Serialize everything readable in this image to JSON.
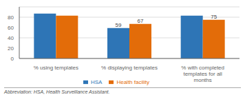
{
  "chart_data": {
    "type": "bar",
    "categories": [
      "% using templates",
      "% displaying templates",
      "% with completed\ntemplates for all\nmonths"
    ],
    "series": [
      {
        "name": "HSA",
        "color": "#2E75B6",
        "values": [
          87,
          59,
          83
        ],
        "value_labels": [
          null,
          "59",
          null
        ]
      },
      {
        "name": "Health facility",
        "color": "#E36C09",
        "values": [
          83,
          67,
          75
        ],
        "value_labels": [
          null,
          "67",
          "75"
        ]
      }
    ],
    "ylim": [
      0,
      100
    ],
    "yticks": [
      0,
      20,
      40,
      60,
      80
    ],
    "grid": true,
    "legend": "bottom",
    "data_labels": true,
    "footnote": "Abbreviation: HSA, Health Surveillance Assistant."
  }
}
